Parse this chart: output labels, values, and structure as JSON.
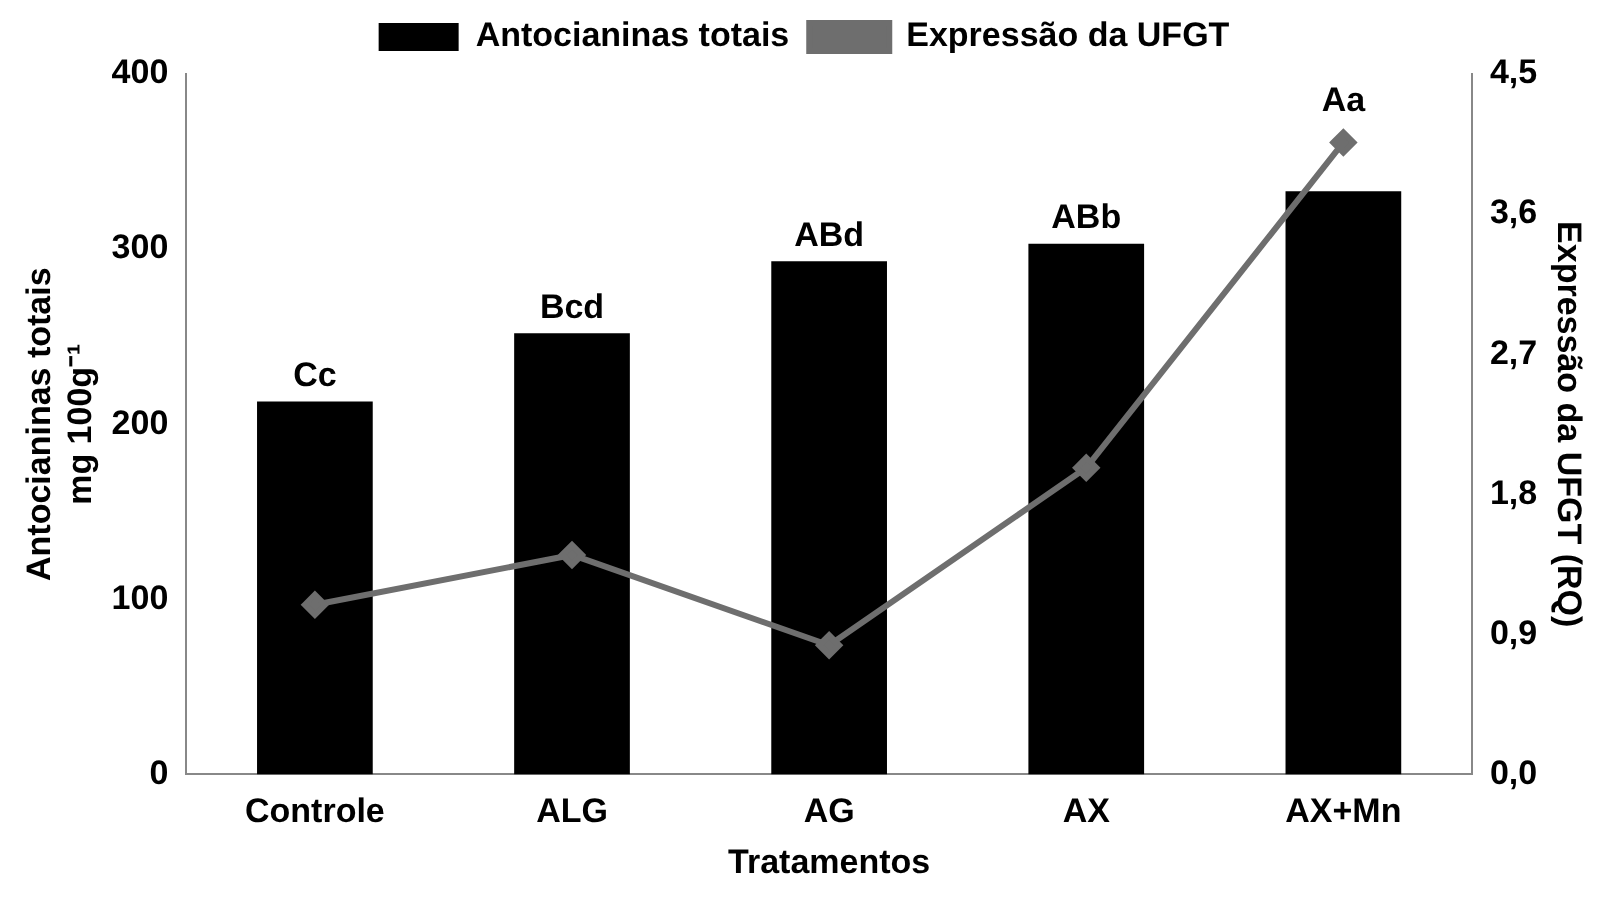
{
  "chart_data": {
    "type": "bar",
    "xlabel": "Tratamentos",
    "ylabel": "Antocianinas totais\nmg 100g⁻¹",
    "y2label": "Expressão da UFGT (RQ)",
    "categories": [
      "Controle",
      "ALG",
      "AG",
      "AX",
      "AX+Mn"
    ],
    "series": [
      {
        "name": "Antocianinas totais",
        "color": "#000000",
        "values": [
          213,
          252,
          293,
          303,
          333
        ]
      },
      {
        "name": "Expressão da UFGT",
        "type": "line",
        "axis": "y2",
        "color": "#6e6e6e",
        "marker": "diamond",
        "values": [
          1.09,
          1.41,
          0.83,
          1.97,
          4.06
        ]
      }
    ],
    "ylim": [
      0,
      400
    ],
    "yticks": [
      0,
      100,
      200,
      300,
      400
    ],
    "y2lim": [
      0,
      4.5
    ],
    "y2ticks": [
      {
        "value": 0,
        "label": "0,0"
      },
      {
        "value": 0.9,
        "label": "0,9"
      },
      {
        "value": 1.8,
        "label": "1,8"
      },
      {
        "value": 2.7,
        "label": "2,7"
      },
      {
        "value": 3.6,
        "label": "3,6"
      },
      {
        "value": 4.5,
        "label": "4,5"
      }
    ],
    "annotations": [
      {
        "text": "Cc",
        "x": "Controle",
        "y": 213
      },
      {
        "text": "Bcd",
        "x": "ALG",
        "y": 252
      },
      {
        "text": "ABd",
        "x": "AG",
        "y": 293
      },
      {
        "text": "ABb",
        "x": "AX",
        "y": 303
      },
      {
        "text": "Aa",
        "x": "AX+Mn",
        "y": 333
      }
    ],
    "grid": false,
    "legend": "top"
  }
}
